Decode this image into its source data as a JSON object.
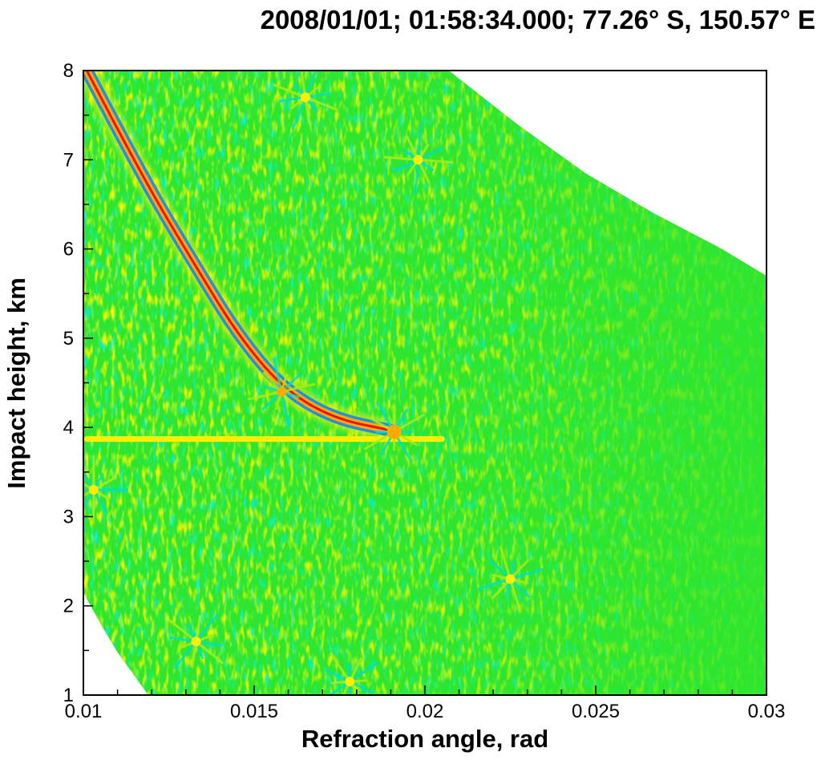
{
  "chart_data": {
    "type": "heatmap",
    "title": "2008/01/01; 01:58:34.000; 77.26° S, 150.57° E",
    "xlabel": "Refraction angle, rad",
    "ylabel": "Impact height, km",
    "xlim": [
      0.01,
      0.03
    ],
    "ylim": [
      1,
      8
    ],
    "x_ticks": [
      "0.01",
      "0.015",
      "0.02",
      "0.025",
      "0.03"
    ],
    "y_ticks": [
      "1",
      "2",
      "3",
      "4",
      "5",
      "6",
      "7",
      "8"
    ],
    "x_tick_values": [
      0.01,
      0.015,
      0.02,
      0.025,
      0.03
    ],
    "y_tick_values": [
      1,
      2,
      3,
      4,
      5,
      6,
      7,
      8
    ],
    "grid": false,
    "colormap": [
      "#00e040",
      "#22dd22",
      "#a8ec18",
      "#ffee00",
      "#ffaa00",
      "#ff6600",
      "#ee1100",
      "#00e0c8",
      "#1e90e8",
      "#7040b0"
    ],
    "background_color": "#2ee62e",
    "features": {
      "main_arc": [
        {
          "x": 0.0101,
          "y": 8.0
        },
        {
          "x": 0.0112,
          "y": 7.2
        },
        {
          "x": 0.0122,
          "y": 6.5
        },
        {
          "x": 0.0133,
          "y": 5.8
        },
        {
          "x": 0.0145,
          "y": 5.05
        },
        {
          "x": 0.0158,
          "y": 4.45
        },
        {
          "x": 0.0173,
          "y": 4.1
        },
        {
          "x": 0.0191,
          "y": 3.96
        }
      ],
      "horizontal_band": {
        "x_start": 0.0101,
        "x_end": 0.0205,
        "y": 3.87
      },
      "upper_boundary": [
        {
          "x": 0.0207,
          "y": 8.0
        },
        {
          "x": 0.0227,
          "y": 7.4
        },
        {
          "x": 0.0247,
          "y": 6.85
        },
        {
          "x": 0.0267,
          "y": 6.4
        },
        {
          "x": 0.0287,
          "y": 6.0
        },
        {
          "x": 0.03,
          "y": 5.7
        }
      ],
      "lower_boundary": [
        {
          "x": 0.01,
          "y": 2.15
        },
        {
          "x": 0.0105,
          "y": 1.8
        },
        {
          "x": 0.011,
          "y": 1.48
        },
        {
          "x": 0.0119,
          "y": 1.0
        }
      ],
      "caustic_nodes": [
        {
          "x": 0.0191,
          "y": 3.95
        },
        {
          "x": 0.0158,
          "y": 4.4
        },
        {
          "x": 0.0198,
          "y": 7.0
        },
        {
          "x": 0.0165,
          "y": 7.7
        },
        {
          "x": 0.0133,
          "y": 1.6
        },
        {
          "x": 0.0178,
          "y": 1.15
        },
        {
          "x": 0.0225,
          "y": 2.3
        },
        {
          "x": 0.0103,
          "y": 3.3
        }
      ]
    }
  }
}
